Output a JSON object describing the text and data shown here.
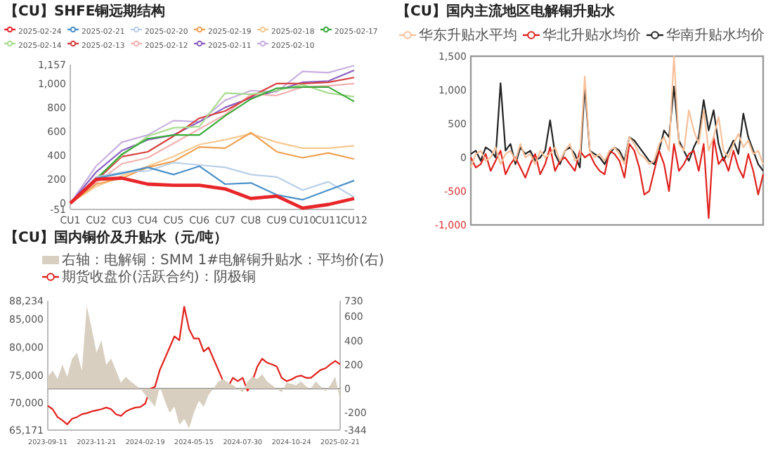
{
  "chart_data": [
    {
      "type": "line",
      "title": "【CU】SHFE铜远期结构",
      "categories": [
        "CU1",
        "CU2",
        "CU3",
        "CU4",
        "CU5",
        "CU6",
        "CU7",
        "CU8",
        "CU9",
        "CU10",
        "CU11",
        "CU12"
      ],
      "ylim": [
        -51,
        1157
      ],
      "yticks": [
        {
          "value": -51,
          "label": "-51"
        },
        0,
        200,
        400,
        600,
        800,
        {
          "value": 1000,
          "label": "1,000"
        },
        {
          "value": 1157,
          "label": "1,157"
        }
      ],
      "legend": "top",
      "series": [
        {
          "name": "2025-02-24",
          "color": "#e8262a",
          "values": [
            0,
            200,
            210,
            160,
            150,
            150,
            120,
            40,
            60,
            -40,
            -10,
            40
          ]
        },
        {
          "name": "2025-02-21",
          "color": "#4a90c8",
          "values": [
            0,
            210,
            250,
            300,
            240,
            310,
            160,
            170,
            70,
            30,
            110,
            190
          ]
        },
        {
          "name": "2025-02-20",
          "color": "#b8cfe8",
          "values": [
            0,
            220,
            260,
            270,
            340,
            320,
            300,
            240,
            220,
            110,
            180,
            50
          ]
        },
        {
          "name": "2025-02-19",
          "color": "#f0a050",
          "values": [
            0,
            160,
            210,
            300,
            350,
            470,
            460,
            590,
            430,
            380,
            420,
            370
          ]
        },
        {
          "name": "2025-02-18",
          "color": "#f7c890",
          "values": [
            0,
            140,
            230,
            310,
            390,
            490,
            530,
            580,
            510,
            460,
            460,
            480
          ]
        },
        {
          "name": "2025-02-17",
          "color": "#3aaa3a",
          "values": [
            0,
            200,
            410,
            540,
            570,
            570,
            730,
            870,
            960,
            970,
            970,
            850
          ]
        },
        {
          "name": "2025-02-14",
          "color": "#a8dc90",
          "values": [
            0,
            210,
            400,
            560,
            630,
            640,
            920,
            910,
            940,
            990,
            920,
            890
          ]
        },
        {
          "name": "2025-02-13",
          "color": "#d94040",
          "values": [
            0,
            190,
            390,
            430,
            560,
            710,
            770,
            890,
            1000,
            1000,
            1010,
            1050
          ]
        },
        {
          "name": "2025-02-12",
          "color": "#f4b0b0",
          "values": [
            0,
            170,
            330,
            380,
            500,
            620,
            740,
            910,
            900,
            970,
            980,
            1000
          ]
        },
        {
          "name": "2025-02-11",
          "color": "#8a60c0",
          "values": [
            0,
            260,
            440,
            530,
            570,
            680,
            800,
            880,
            940,
            1010,
            1020,
            1110
          ]
        },
        {
          "name": "2025-02-10",
          "color": "#c8b0e0",
          "values": [
            0,
            310,
            510,
            570,
            690,
            680,
            860,
            940,
            930,
            1100,
            1090,
            1150
          ]
        }
      ]
    },
    {
      "type": "line",
      "title": "【CU】国内主流地区电解铜升贴水",
      "categories": [
        null,
        null,
        null,
        null,
        null,
        null,
        null,
        null,
        null,
        null,
        null,
        null,
        null,
        null,
        null,
        null,
        null,
        null,
        null,
        null,
        null,
        null,
        null,
        null,
        null,
        null,
        null,
        null,
        null,
        null,
        null,
        null,
        null,
        null,
        null,
        null,
        null,
        null,
        null,
        null,
        null,
        null,
        null,
        null,
        null,
        null,
        null,
        null,
        null,
        null,
        null,
        null,
        null,
        null,
        null,
        null,
        null,
        null,
        null,
        null
      ],
      "ylim": [
        -1000,
        1500
      ],
      "yticks": [
        {
          "value": -1000,
          "label": "-1,000"
        },
        -500,
        0,
        500,
        {
          "value": 1000,
          "label": "1,000"
        },
        {
          "value": 1500,
          "label": "1,500"
        }
      ],
      "legend": "top",
      "series": [
        {
          "name": "华东升贴水平均",
          "color": "#f7c09a",
          "values": [
            -150,
            50,
            100,
            -50,
            0,
            150,
            -100,
            50,
            100,
            -50,
            200,
            0,
            50,
            -100,
            100,
            0,
            50,
            150,
            -50,
            100,
            200,
            -50,
            0,
            1200,
            100,
            0,
            50,
            -50,
            100,
            150,
            50,
            -100,
            300,
            200,
            50,
            0,
            -100,
            -50,
            200,
            300,
            100,
            1500,
            200,
            100,
            700,
            400,
            200,
            700,
            100,
            300,
            600,
            100,
            0,
            200,
            350,
            150,
            250,
            50,
            100,
            -100
          ]
        },
        {
          "name": "华北升贴水均价",
          "color": "#e0201c",
          "values": [
            0,
            -150,
            -100,
            50,
            -200,
            -50,
            100,
            -250,
            -100,
            0,
            -150,
            -300,
            -100,
            50,
            -250,
            -100,
            150,
            -200,
            -50,
            0,
            -100,
            -200,
            100,
            0,
            50,
            -100,
            -200,
            -250,
            100,
            50,
            -50,
            -300,
            200,
            100,
            -150,
            -550,
            -500,
            -200,
            100,
            -100,
            -500,
            200,
            -200,
            -100,
            50,
            100,
            -200,
            200,
            -900,
            300,
            -100,
            0,
            -200,
            100,
            -150,
            -300,
            50,
            -200,
            -550,
            -250
          ]
        },
        {
          "name": "华南升贴水均价",
          "color": "#222222",
          "values": [
            50,
            100,
            -50,
            150,
            100,
            0,
            1100,
            100,
            200,
            -100,
            150,
            50,
            100,
            -50,
            0,
            100,
            550,
            50,
            -100,
            100,
            150,
            50,
            -150,
            1050,
            100,
            50,
            0,
            -100,
            50,
            150,
            100,
            -50,
            300,
            250,
            150,
            50,
            -50,
            -100,
            100,
            400,
            300,
            1050,
            250,
            100,
            -50,
            150,
            300,
            850,
            400,
            700,
            200,
            -50,
            100,
            250,
            50,
            650,
            300,
            100,
            -100,
            -200
          ]
        }
      ]
    },
    {
      "type": "line",
      "title": "【CU】国内铜价及升贴水（元/吨）",
      "categories": [
        "2023-09-11",
        null,
        null,
        null,
        null,
        null,
        null,
        null,
        null,
        null,
        "2023-11-21",
        null,
        null,
        null,
        null,
        null,
        null,
        null,
        null,
        null,
        "2024-02-19",
        null,
        null,
        null,
        null,
        null,
        null,
        null,
        null,
        null,
        "2024-05-15",
        null,
        null,
        null,
        null,
        null,
        null,
        null,
        null,
        null,
        "2024-07-30",
        null,
        null,
        null,
        null,
        null,
        null,
        null,
        null,
        null,
        "2024-10-24",
        null,
        null,
        null,
        null,
        null,
        null,
        null,
        null,
        null,
        "2025-02-21"
      ],
      "ylim": [
        65171,
        88234
      ],
      "yticks": [
        {
          "value": 65171,
          "label": "65,171"
        },
        {
          "value": 70000,
          "label": "70,000"
        },
        {
          "value": 75000,
          "label": "75,000"
        },
        {
          "value": 80000,
          "label": "80,000"
        },
        {
          "value": 85000,
          "label": "85,000"
        },
        {
          "value": 88234,
          "label": "88,234"
        }
      ],
      "y2lim": [
        -344,
        730
      ],
      "y2ticks": [
        -344,
        -200,
        0,
        200,
        400,
        600,
        730
      ],
      "legend": "top",
      "ref_lines": [
        {
          "axis": "y2",
          "value": 0,
          "color": "#888888"
        }
      ],
      "series": [
        {
          "name": "右轴：电解铜：SMM 1#电解铜升贴水：平均价(右)",
          "type": "area",
          "axis": "y2",
          "color": "#d8cfc0",
          "values": [
            100,
            150,
            80,
            200,
            100,
            250,
            300,
            150,
            690,
            500,
            300,
            400,
            200,
            250,
            150,
            50,
            100,
            60,
            30,
            0,
            -50,
            -100,
            -150,
            20,
            -100,
            -200,
            -150,
            -300,
            -250,
            -330,
            -200,
            -100,
            -150,
            -50,
            0,
            60,
            80,
            50,
            30,
            0,
            -30,
            60,
            100,
            80,
            120,
            60,
            30,
            0,
            -30,
            50,
            40,
            30,
            60,
            20,
            0,
            60,
            20,
            -20,
            30,
            100,
            -100
          ]
        },
        {
          "name": "期货收盘价(活跃合约)：阴极铜",
          "type": "line",
          "color": "#e0201c",
          "values": [
            69500,
            68900,
            67500,
            66900,
            66200,
            67200,
            67500,
            68000,
            68200,
            68500,
            68700,
            68900,
            69200,
            68900,
            68000,
            67700,
            68500,
            68900,
            69200,
            69300,
            69900,
            72500,
            72900,
            75900,
            77900,
            79900,
            81900,
            81200,
            87200,
            83200,
            81500,
            81500,
            79200,
            79900,
            77900,
            75900,
            73900,
            72900,
            74500,
            73900,
            74500,
            72200,
            73900,
            76500,
            77900,
            77200,
            76900,
            76500,
            74500,
            73900,
            74200,
            74700,
            74900,
            74500,
            74500,
            75200,
            75900,
            76200,
            76900,
            77500,
            76900
          ]
        }
      ]
    }
  ]
}
